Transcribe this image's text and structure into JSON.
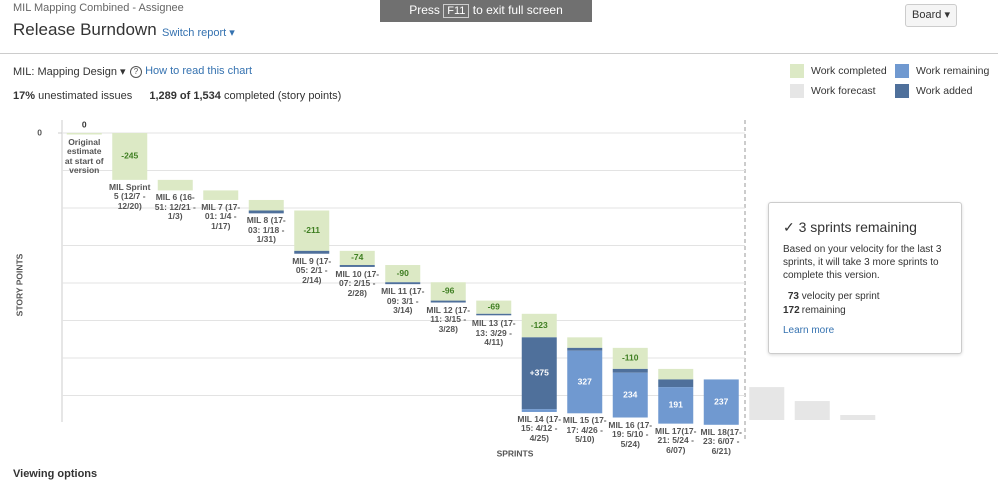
{
  "header": {
    "breadcrumb": "MIL Mapping Combined - Assignee",
    "title": "Release Burndown",
    "switch_report": "Switch report",
    "fullscreen_hint": {
      "press": "Press",
      "key": "F11",
      "rest": "to exit full screen"
    },
    "board_button": "Board"
  },
  "controls": {
    "version_select": "MIL: Mapping Design",
    "help_link": "How to read this chart"
  },
  "stats": {
    "unestimated_pct": "17%",
    "unestimated_text": "unestimated issues",
    "completed": "1,289 of 1,534",
    "completed_text": "completed (story points)"
  },
  "chart_data": {
    "type": "burndown",
    "x_label": "SPRINTS",
    "y_label": "STORY POINTS",
    "ylim": [
      0,
      1500
    ],
    "yticks": [
      0
    ],
    "grid": true,
    "categories": [
      "Original estimate at start of version",
      "MIL Sprint 5 (12/7 - 12/20)",
      "MIL 6 (16-51: 12/21 - 1/3)",
      "MIL 7 (17-01: 1/4 - 1/17)",
      "MIL 8 (17-03: 1/18 - 1/31)",
      "MIL 9 (17-05: 2/1 - 2/14)",
      "MIL 10 (17-07: 2/15 - 2/28)",
      "MIL 11 (17-09: 3/1 - 3/14)",
      "MIL 12 (17-11: 3/15 - 3/28)",
      "MIL 13 (17-13: 3/29 - 4/11)",
      "MIL 14 (17-15: 4/12 - 4/25)",
      "MIL 15 (17-17: 4/26 - 5/10)",
      "MIL 16 (17-19: 5/10 - 5/24)",
      "MIL 17(17-21: 5/24 - 6/07)",
      "MIL 18(17-23: 6/07 - 6/21)",
      null,
      null,
      null
    ],
    "series": [
      {
        "name": "Work completed",
        "color": "#dce9c5",
        "values": [
          0,
          -245,
          -55,
          -50,
          -55,
          -211,
          -74,
          -90,
          -96,
          -69,
          -123,
          -55,
          -110,
          -55,
          null,
          null,
          null,
          null
        ],
        "value_labels": [
          "0",
          "-245",
          null,
          null,
          null,
          "-211",
          "-74",
          "-90",
          "-96",
          "-69",
          "-123",
          null,
          "-110",
          null,
          null,
          null,
          null,
          null
        ]
      },
      {
        "name": "Work added",
        "color": "#4f709b",
        "values": [
          null,
          null,
          null,
          null,
          15,
          15,
          10,
          10,
          10,
          5,
          375,
          15,
          20,
          40,
          null,
          null,
          null,
          null
        ],
        "value_labels": [
          null,
          null,
          null,
          null,
          null,
          null,
          null,
          null,
          null,
          null,
          "+375",
          null,
          null,
          null,
          null,
          null,
          null,
          null
        ]
      },
      {
        "name": "Work remaining",
        "color": "#7099d0",
        "values": [
          null,
          null,
          null,
          null,
          null,
          null,
          null,
          null,
          null,
          null,
          15,
          327,
          234,
          191,
          237,
          null,
          null,
          null
        ],
        "value_labels": [
          null,
          null,
          null,
          null,
          null,
          null,
          null,
          null,
          null,
          null,
          null,
          "327",
          "234",
          "191",
          "237",
          null,
          null,
          null
        ]
      },
      {
        "name": "Work forecast",
        "color": "#e6e6e6",
        "values": [
          null,
          null,
          null,
          null,
          null,
          null,
          null,
          null,
          null,
          null,
          null,
          null,
          null,
          null,
          null,
          172,
          99,
          26
        ]
      }
    ]
  },
  "forecast_box": {
    "title": "3 sprints remaining",
    "text": "Based on your velocity for the last 3 sprints, it will take 3 more sprints to complete this version.",
    "velocity": 73,
    "velocity_text": "velocity per sprint",
    "remaining": 172,
    "remaining_text": "remaining",
    "link": "Learn more"
  },
  "footer": {
    "viewing_options": "Viewing options"
  }
}
